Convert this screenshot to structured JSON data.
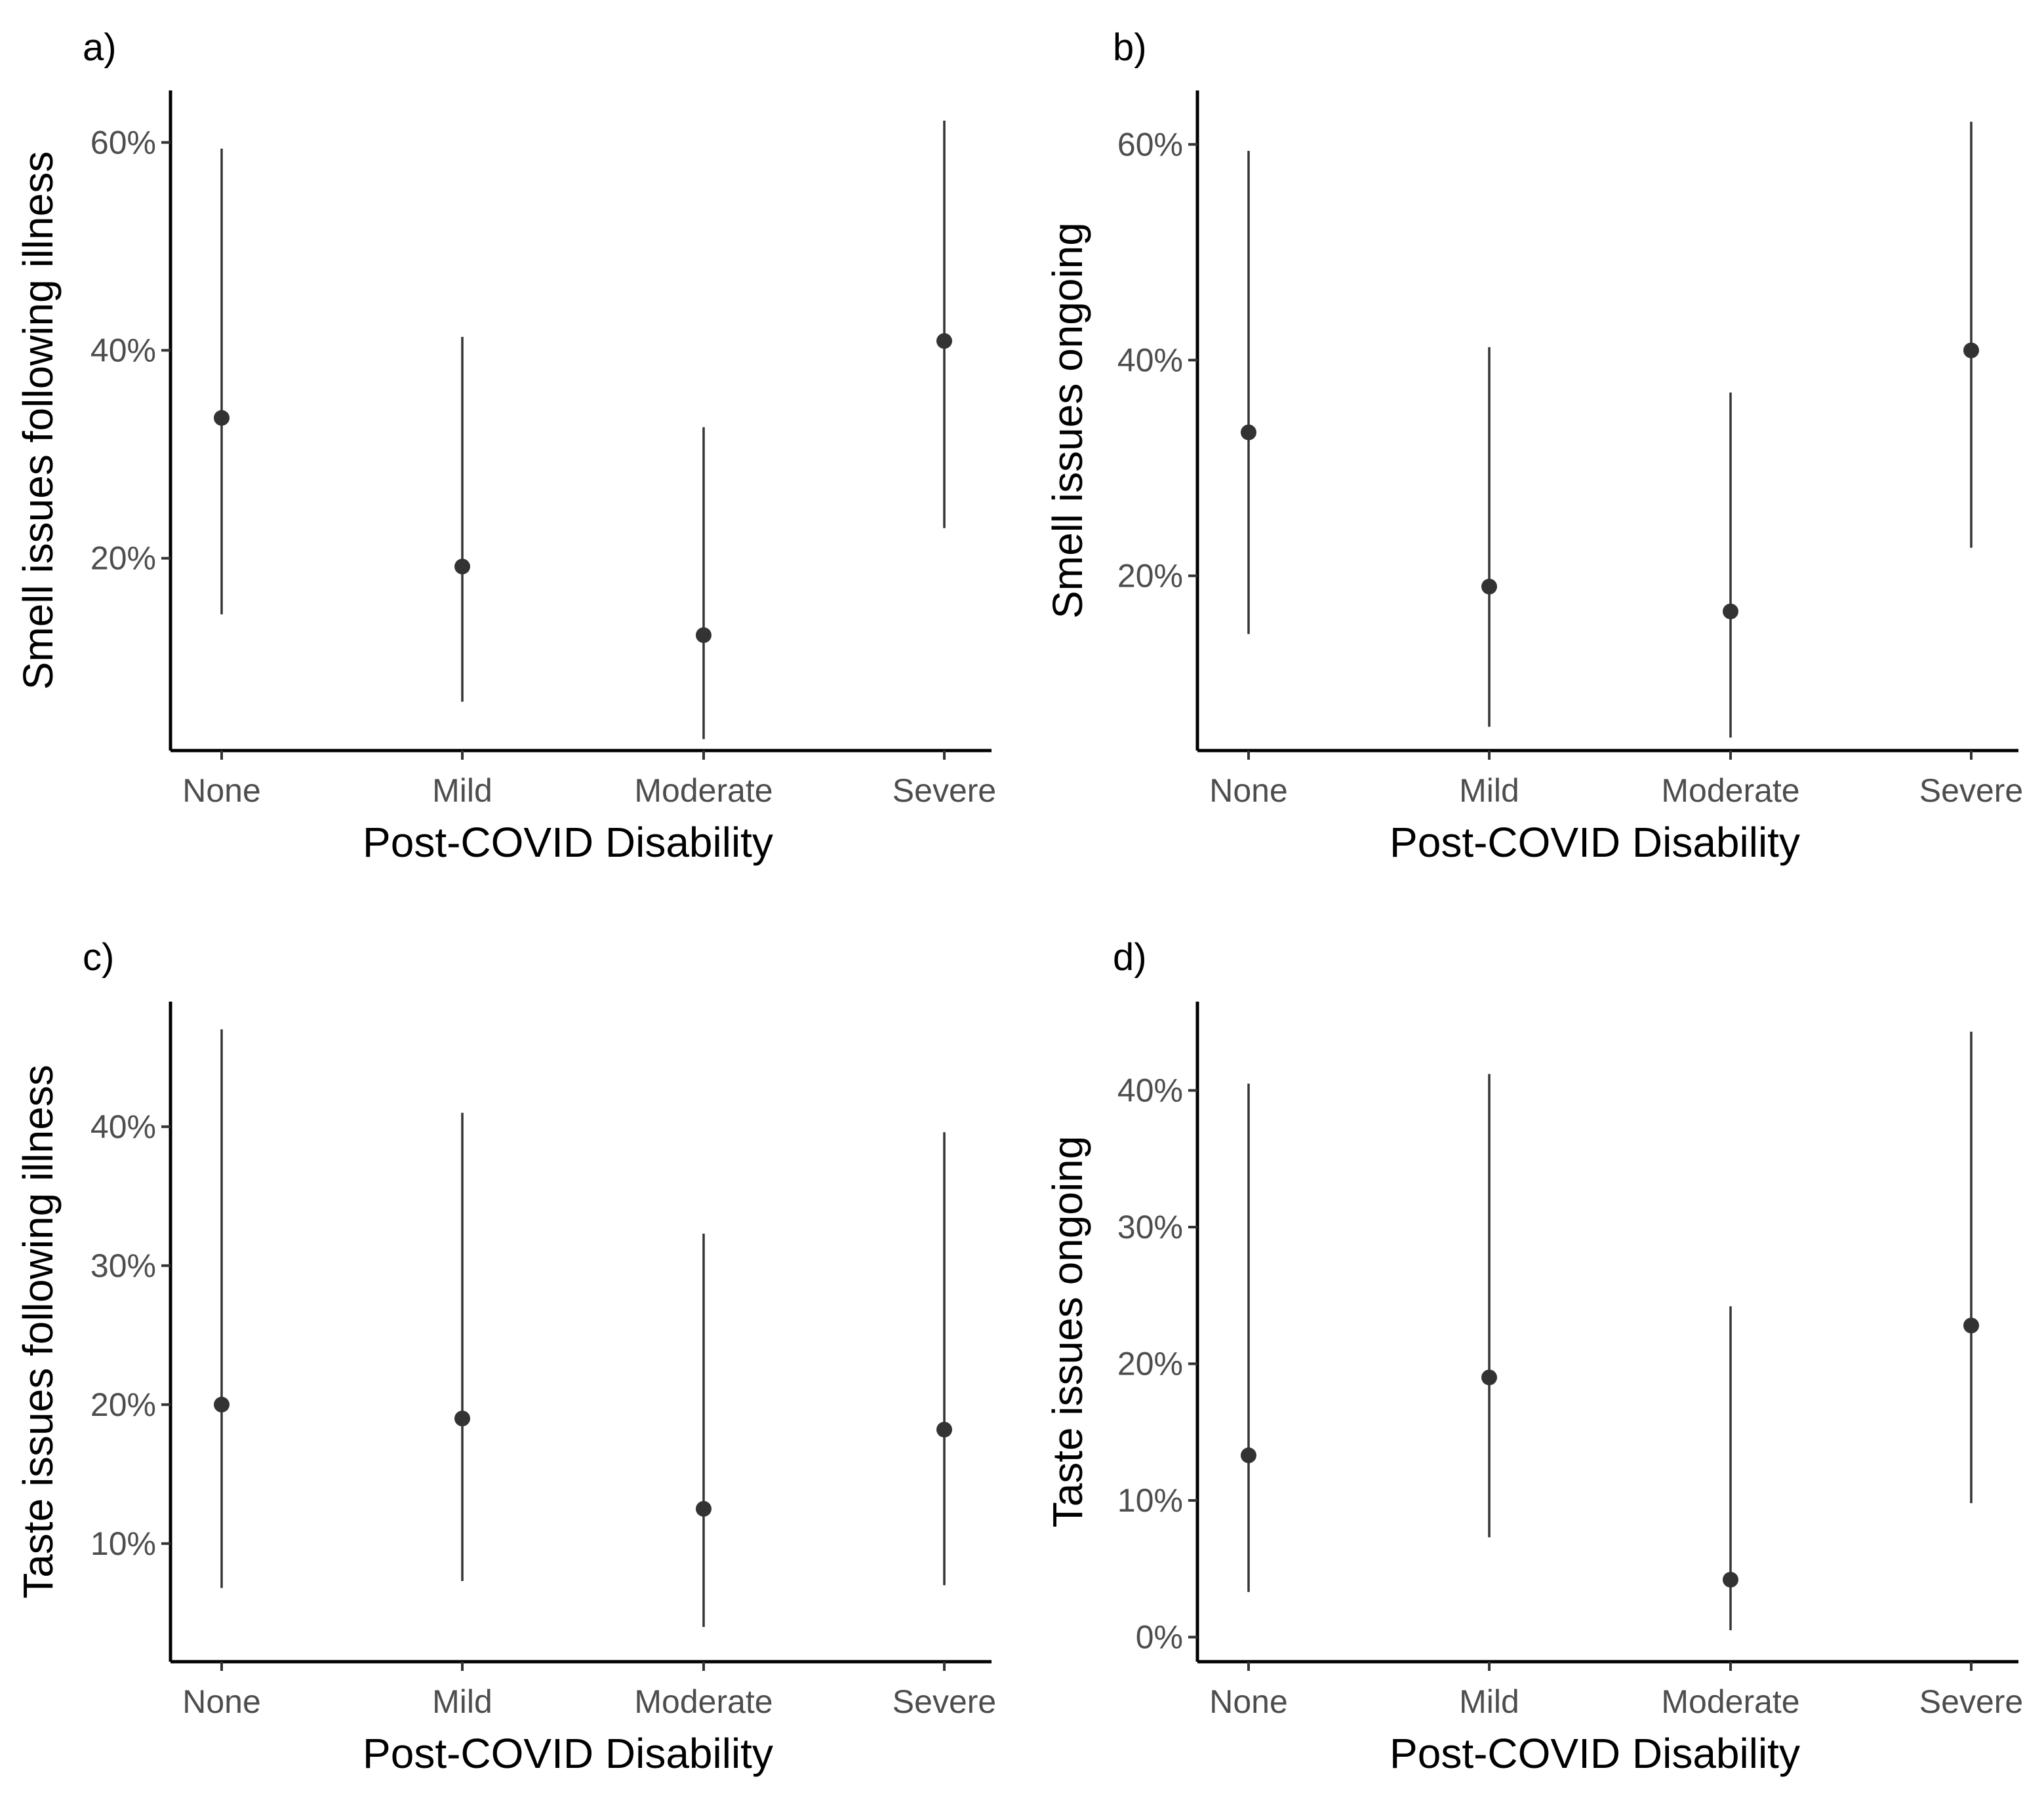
{
  "chart_data": [
    {
      "type": "scatter",
      "panel_label": "a)",
      "xlabel": "Post-COVID Disability",
      "ylabel": "Smell issues following illness",
      "categories": [
        "None",
        "Mild",
        "Moderate",
        "Severe"
      ],
      "values": [
        33.5,
        19.2,
        12.6,
        40.9
      ],
      "lower": [
        14.6,
        6.2,
        2.6,
        22.9
      ],
      "upper": [
        59.4,
        41.3,
        32.6,
        62.1
      ],
      "yticks": [
        20,
        40,
        60
      ],
      "ytick_labels": [
        "20%",
        "40%",
        "60%"
      ],
      "ylim": [
        1.5,
        65
      ],
      "grid": false
    },
    {
      "type": "scatter",
      "panel_label": "b)",
      "xlabel": "Post-COVID Disability",
      "ylabel": "Smell issues ongoing",
      "categories": [
        "None",
        "Mild",
        "Moderate",
        "Severe"
      ],
      "values": [
        33.3,
        19.0,
        16.7,
        40.9
      ],
      "lower": [
        14.6,
        6.0,
        5.0,
        22.6
      ],
      "upper": [
        59.4,
        41.2,
        37.0,
        62.1
      ],
      "yticks": [
        20,
        40,
        60
      ],
      "ytick_labels": [
        "20%",
        "40%",
        "60%"
      ],
      "ylim": [
        3.8,
        65
      ],
      "grid": false
    },
    {
      "type": "scatter",
      "panel_label": "c)",
      "xlabel": "Post-COVID Disability",
      "ylabel": "Taste issues following illness",
      "categories": [
        "None",
        "Mild",
        "Moderate",
        "Severe"
      ],
      "values": [
        20.0,
        19.0,
        12.5,
        18.2
      ],
      "lower": [
        6.8,
        7.3,
        4.0,
        7.0
      ],
      "upper": [
        47.0,
        41.0,
        32.3,
        39.6
      ],
      "yticks": [
        10,
        20,
        30,
        40
      ],
      "ytick_labels": [
        "10%",
        "20%",
        "30%",
        "40%"
      ],
      "ylim": [
        1.5,
        49
      ],
      "grid": false
    },
    {
      "type": "scatter",
      "panel_label": "d)",
      "xlabel": "Post-COVID Disability",
      "ylabel": "Taste issues ongoing",
      "categories": [
        "None",
        "Mild",
        "Moderate",
        "Severe"
      ],
      "values": [
        13.3,
        19.0,
        4.2,
        22.8
      ],
      "lower": [
        3.3,
        7.3,
        0.5,
        9.8
      ],
      "upper": [
        40.5,
        41.2,
        24.2,
        44.3
      ],
      "yticks": [
        0,
        10,
        20,
        30,
        40
      ],
      "ytick_labels": [
        "0%",
        "10%",
        "20%",
        "30%",
        "40%"
      ],
      "ylim": [
        -1.8,
        46.5
      ],
      "grid": false
    }
  ]
}
